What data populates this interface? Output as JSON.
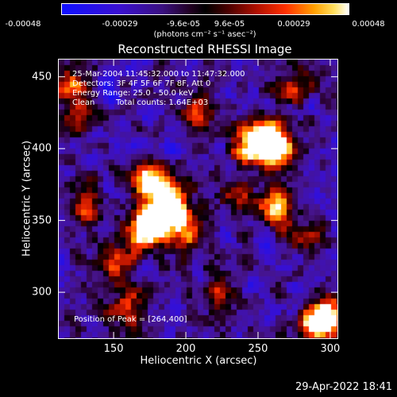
{
  "chart_data": {
    "type": "heatmap",
    "title": "Reconstructed RHESSI Image",
    "xlabel": "Heliocentric X (arcsec)",
    "ylabel": "Heliocentric Y (arcsec)",
    "xlim": [
      112,
      305
    ],
    "ylim": [
      268,
      462
    ],
    "x_ticks": [
      "150",
      "200",
      "250",
      "300"
    ],
    "x_tick_values": [
      150,
      200,
      250,
      300
    ],
    "y_ticks": [
      "300",
      "350",
      "400",
      "450"
    ],
    "y_tick_values": [
      300,
      350,
      400,
      450
    ],
    "colorbar": {
      "min": -0.00048,
      "max": 0.00048,
      "tick_labels": [
        "-0.00048",
        "-0.00029",
        "-9.6e-05",
        "9.6e-05",
        "0.00029",
        "0.00048"
      ],
      "tick_values": [
        -0.00048,
        -0.00029,
        -9.6e-05,
        9.6e-05,
        0.00029,
        0.00048
      ],
      "units": "(photons cm⁻² s⁻¹ asec⁻²)"
    },
    "annotations": {
      "time_range": "25-Mar-2004 11:45:32.000 to 11:47:32.000",
      "detectors": "Detectors: 3F 4F 5F 6F 7F 8F, Att 0",
      "energy_range": "Energy Range: 25.0 - 50.0 keV",
      "method": "Clean",
      "total_counts": "Total counts: 1.64E+03",
      "peak_position": "Position of Peak = [264,400]"
    },
    "peak": [
      264,
      400
    ],
    "bright_regions": [
      {
        "x": 264,
        "y": 400,
        "level": 1.0
      },
      {
        "x": 255,
        "y": 408,
        "level": 0.85
      },
      {
        "x": 178,
        "y": 350,
        "level": 0.9
      },
      {
        "x": 190,
        "y": 357,
        "level": 0.85
      },
      {
        "x": 170,
        "y": 340,
        "level": 0.8
      },
      {
        "x": 185,
        "y": 372,
        "level": 0.8
      },
      {
        "x": 172,
        "y": 378,
        "level": 0.75
      },
      {
        "x": 290,
        "y": 275,
        "level": 0.95
      },
      {
        "x": 300,
        "y": 285,
        "level": 0.85
      },
      {
        "x": 262,
        "y": 360,
        "level": 0.8
      },
      {
        "x": 243,
        "y": 402,
        "level": 0.7
      },
      {
        "x": 120,
        "y": 445,
        "level": 0.6
      },
      {
        "x": 125,
        "y": 425,
        "level": 0.55
      },
      {
        "x": 210,
        "y": 425,
        "level": 0.5
      },
      {
        "x": 200,
        "y": 340,
        "level": 0.65
      },
      {
        "x": 150,
        "y": 318,
        "level": 0.6
      },
      {
        "x": 130,
        "y": 360,
        "level": 0.55
      },
      {
        "x": 280,
        "y": 340,
        "level": 0.6
      },
      {
        "x": 232,
        "y": 370,
        "level": 0.5
      },
      {
        "x": 275,
        "y": 442,
        "level": 0.55
      },
      {
        "x": 160,
        "y": 290,
        "level": 0.55
      },
      {
        "x": 220,
        "y": 300,
        "level": 0.45
      }
    ],
    "grid": false
  },
  "footer": {
    "date_stamp": "29-Apr-2022 18:41"
  }
}
